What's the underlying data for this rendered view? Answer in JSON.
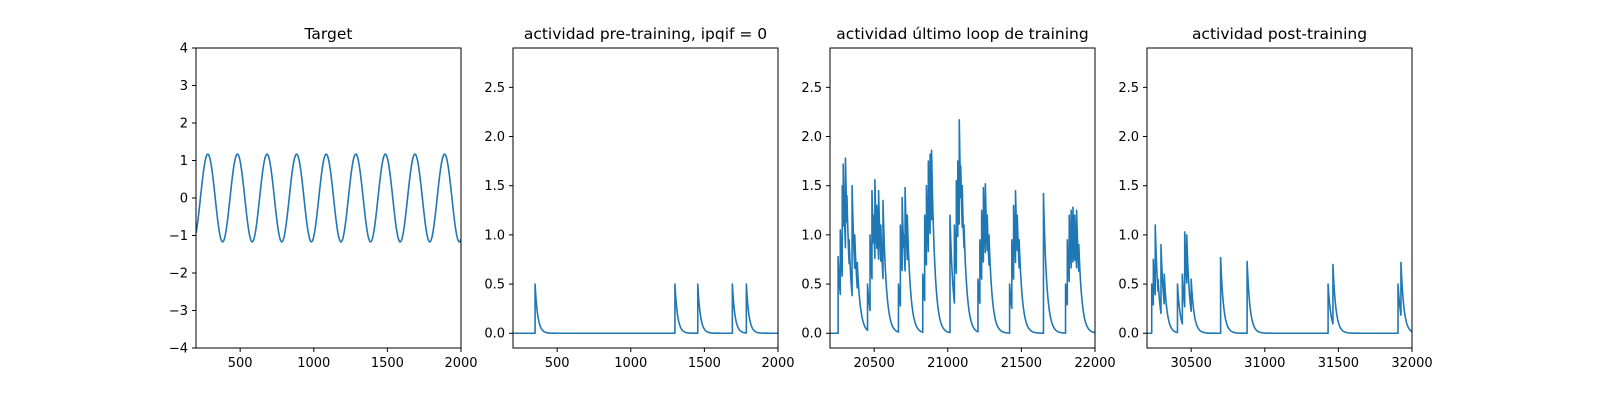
{
  "figure": {
    "line_color": "#1f77b4",
    "background": "#ffffff"
  },
  "chart_data": [
    {
      "type": "line",
      "title": "Target",
      "xlabel": "",
      "ylabel": "",
      "xlim": [
        200,
        2000
      ],
      "ylim": [
        -4,
        4
      ],
      "xticks": [
        500,
        1000,
        1500,
        2000
      ],
      "yticks": [
        -4,
        -3,
        -2,
        -1,
        0,
        1,
        2,
        3,
        4
      ],
      "grid": false,
      "series": [
        {
          "kind": "sine",
          "amplitude": 1.17,
          "period": 201,
          "phase_x": 230,
          "x_range": [
            200,
            2000
          ],
          "comment_visible": "sinusoid with ~9 peaks near x=270,470,670,870,1070,1270,1470,1670,1870"
        }
      ]
    },
    {
      "type": "line",
      "title": "actividad pre-training, ipqif = 0",
      "xlabel": "",
      "ylabel": "",
      "xlim": [
        200,
        2000
      ],
      "ylim": [
        -0.15,
        2.9
      ],
      "xticks": [
        500,
        1000,
        1500,
        2000
      ],
      "yticks": [
        0.0,
        0.5,
        1.0,
        1.5,
        2.0,
        2.5
      ],
      "ytick_labels": [
        "0.0",
        "0.5",
        "1.0",
        "1.5",
        "2.0",
        "2.5"
      ],
      "grid": false,
      "series": [
        {
          "kind": "spikes",
          "x_range": [
            200,
            2000
          ],
          "decay": 18,
          "spikes": [
            [
              350,
              0.5
            ],
            [
              1300,
              0.5
            ],
            [
              1455,
              0.5
            ],
            [
              1690,
              0.5
            ],
            [
              1785,
              0.5
            ]
          ]
        }
      ]
    },
    {
      "type": "line",
      "title": "actividad último loop de training",
      "xlabel": "",
      "ylabel": "",
      "xlim": [
        20200,
        22000
      ],
      "ylim": [
        -0.15,
        2.9
      ],
      "xticks": [
        20500,
        21000,
        21500,
        22000
      ],
      "yticks": [
        0.0,
        0.5,
        1.0,
        1.5,
        2.0,
        2.5
      ],
      "ytick_labels": [
        "0.0",
        "0.5",
        "1.0",
        "1.5",
        "2.0",
        "2.5"
      ],
      "grid": false,
      "series": [
        {
          "kind": "spikes",
          "x_range": [
            20200,
            22000
          ],
          "decay": 22,
          "spikes": [
            [
              20255,
              0.78
            ],
            [
              20270,
              1.05
            ],
            [
              20283,
              1.5
            ],
            [
              20290,
              1.72
            ],
            [
              20297,
              1.2
            ],
            [
              20305,
              1.78
            ],
            [
              20315,
              1.4
            ],
            [
              20330,
              0.95
            ],
            [
              20350,
              1.5
            ],
            [
              20368,
              1.0
            ],
            [
              20385,
              0.72
            ],
            [
              20455,
              0.5
            ],
            [
              20472,
              1.0
            ],
            [
              20485,
              1.45
            ],
            [
              20495,
              1.2
            ],
            [
              20505,
              1.56
            ],
            [
              20518,
              1.3
            ],
            [
              20530,
              1.45
            ],
            [
              20545,
              1.1
            ],
            [
              20560,
              1.35
            ],
            [
              20575,
              0.6
            ],
            [
              20665,
              0.5
            ],
            [
              20678,
              1.1
            ],
            [
              20690,
              1.38
            ],
            [
              20700,
              1.0
            ],
            [
              20710,
              1.48
            ],
            [
              20725,
              1.2
            ],
            [
              20830,
              0.6
            ],
            [
              20843,
              1.2
            ],
            [
              20855,
              1.5
            ],
            [
              20868,
              1.75
            ],
            [
              20880,
              1.82
            ],
            [
              20890,
              1.86
            ],
            [
              20900,
              1.2
            ],
            [
              21015,
              1.2
            ],
            [
              21030,
              0.55
            ],
            [
              21045,
              1.1
            ],
            [
              21058,
              1.55
            ],
            [
              21068,
              1.75
            ],
            [
              21078,
              2.17
            ],
            [
              21088,
              1.7
            ],
            [
              21098,
              1.5
            ],
            [
              21110,
              1.1
            ],
            [
              21205,
              0.55
            ],
            [
              21218,
              0.95
            ],
            [
              21230,
              1.25
            ],
            [
              21242,
              1.48
            ],
            [
              21255,
              1.52
            ],
            [
              21268,
              1.2
            ],
            [
              21280,
              1.0
            ],
            [
              21420,
              0.5
            ],
            [
              21435,
              0.95
            ],
            [
              21447,
              1.3
            ],
            [
              21460,
              1.45
            ],
            [
              21472,
              1.2
            ],
            [
              21485,
              0.95
            ],
            [
              21650,
              1.42
            ],
            [
              21800,
              0.5
            ],
            [
              21812,
              0.95
            ],
            [
              21825,
              1.2
            ],
            [
              21838,
              1.25
            ],
            [
              21850,
              1.28
            ],
            [
              21862,
              1.2
            ],
            [
              21875,
              1.25
            ],
            [
              21890,
              0.9
            ]
          ]
        }
      ]
    },
    {
      "type": "line",
      "title": "actividad post-training",
      "xlabel": "",
      "ylabel": "",
      "xlim": [
        30200,
        32000
      ],
      "ylim": [
        -0.15,
        2.9
      ],
      "xticks": [
        30500,
        31000,
        31500,
        32000
      ],
      "yticks": [
        0.0,
        0.5,
        1.0,
        1.5,
        2.0,
        2.5
      ],
      "ytick_labels": [
        "0.0",
        "0.5",
        "1.0",
        "1.5",
        "2.0",
        "2.5"
      ],
      "grid": false,
      "series": [
        {
          "kind": "spikes",
          "x_range": [
            30200,
            32000
          ],
          "decay": 20,
          "spikes": [
            [
              30232,
              0.5
            ],
            [
              30243,
              0.75
            ],
            [
              30256,
              1.1
            ],
            [
              30275,
              0.55
            ],
            [
              30295,
              0.9
            ],
            [
              30317,
              0.6
            ],
            [
              30407,
              0.5
            ],
            [
              30440,
              0.6
            ],
            [
              30456,
              1.03
            ],
            [
              30470,
              1.0
            ],
            [
              30500,
              0.55
            ],
            [
              30700,
              0.77
            ],
            [
              30880,
              0.73
            ],
            [
              31430,
              0.5
            ],
            [
              31463,
              0.7
            ],
            [
              31905,
              0.5
            ],
            [
              31925,
              0.72
            ]
          ]
        }
      ]
    }
  ]
}
